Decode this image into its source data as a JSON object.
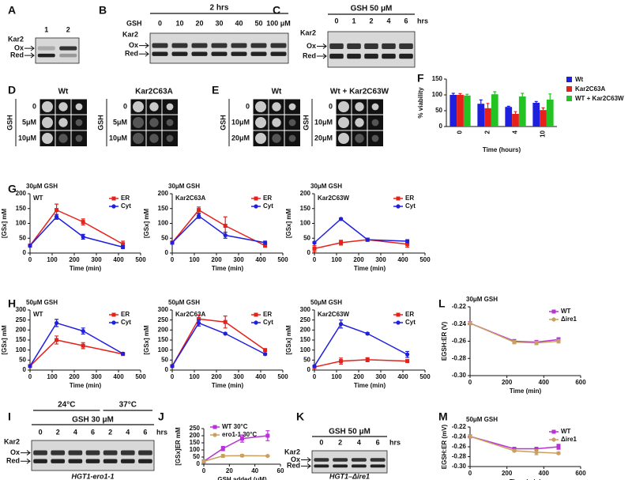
{
  "panels": {
    "blots": [
      {
        "letter": "A",
        "lanes": [
          "1",
          "2"
        ],
        "markers": [
          "Kar2",
          "Ox",
          "Red"
        ]
      },
      {
        "letter": "B",
        "header": "2 hrs",
        "lead": "GSH",
        "lanes": [
          "0",
          "10",
          "20",
          "30",
          "40",
          "50",
          "100 μM"
        ],
        "markers": [
          "Kar2",
          "Ox",
          "Red"
        ]
      },
      {
        "letter": "C",
        "header": "GSH 50 μM",
        "lanes": [
          "0",
          "1",
          "2",
          "4",
          "6"
        ],
        "unit": "hrs",
        "markers": [
          "Kar2",
          "Ox",
          "Red"
        ]
      },
      {
        "letter": "I",
        "temps": [
          "24°C",
          "37°C"
        ],
        "header": "GSH 30 μM",
        "lanes": [
          "0",
          "2",
          "4",
          "6",
          "2",
          "4",
          "6"
        ],
        "unit": "hrs",
        "markers": [
          "Kar2",
          "Ox",
          "Red"
        ],
        "caption": "HGT1-ero1-1"
      },
      {
        "letter": "K",
        "header": "GSH 50 μM",
        "lanes": [
          "0",
          "2",
          "4",
          "6"
        ],
        "unit": "hrs",
        "markers": [
          "Kar2",
          "Ox",
          "Red"
        ],
        "caption": "HGT1–Δire1"
      }
    ],
    "spots": [
      {
        "letter": "D",
        "side": "GSH",
        "groups": [
          {
            "title": "Wt",
            "rows": [
              "0",
              "5μM",
              "10μM"
            ]
          },
          {
            "title": "Kar2C63A",
            "rows": [
              "0",
              "5μM",
              "10μM"
            ]
          }
        ]
      },
      {
        "letter": "E",
        "side": "GSH",
        "groups": [
          {
            "title": "Wt",
            "rows": [
              "0",
              "10μM",
              "20μM"
            ]
          },
          {
            "title": "Wt + Kar2C63W",
            "rows": [
              "0",
              "10μM",
              "20μM"
            ]
          }
        ]
      }
    ]
  },
  "chart_data": [
    {
      "type": "bar",
      "panel": "F",
      "ylabel": "% viability",
      "xlabel": "Time (hours)",
      "categories": [
        "0",
        "2",
        "4",
        "10"
      ],
      "ylim": [
        0,
        150
      ],
      "yticks": [
        0,
        50,
        100,
        150
      ],
      "series": [
        {
          "name": "Wt",
          "color": "#1f1fe0",
          "values": [
            100,
            72,
            62,
            75
          ],
          "errors": [
            5,
            12,
            2,
            4
          ]
        },
        {
          "name": "Kar2C63A",
          "color": "#e8201a",
          "values": [
            100,
            58,
            40,
            52
          ],
          "errors": [
            4,
            15,
            7,
            7
          ]
        },
        {
          "name": "WT + Kar2C63W",
          "color": "#22c322",
          "values": [
            98,
            102,
            95,
            85
          ],
          "errors": [
            4,
            8,
            10,
            18
          ]
        }
      ]
    },
    {
      "type": "line",
      "panel": "G",
      "title": "30μM GSH",
      "label": "WT",
      "xlabel": "Time (min)",
      "ylabel": "[GSx] mM",
      "x": [
        0,
        120,
        240,
        420
      ],
      "xlim": [
        0,
        500
      ],
      "xticks": [
        0,
        100,
        200,
        300,
        400,
        500
      ],
      "ylim": [
        0,
        200
      ],
      "yticks": [
        0,
        50,
        100,
        150,
        200
      ],
      "series": [
        {
          "name": "ER",
          "color": "#e8201a",
          "values": [
            25,
            145,
            105,
            30
          ],
          "errors": [
            5,
            20,
            10,
            10
          ]
        },
        {
          "name": "Cyt",
          "color": "#1f1fe0",
          "values": [
            25,
            122,
            55,
            20
          ],
          "errors": [
            3,
            8,
            8,
            5
          ]
        }
      ]
    },
    {
      "type": "line",
      "title": "30μM GSH",
      "label": "Kar2C63A",
      "xlabel": "Time (min)",
      "ylabel": "[GSx] mM",
      "x": [
        0,
        120,
        240,
        420
      ],
      "xlim": [
        0,
        500
      ],
      "xticks": [
        0,
        100,
        200,
        300,
        400,
        500
      ],
      "ylim": [
        0,
        200
      ],
      "yticks": [
        0,
        50,
        100,
        150,
        200
      ],
      "series": [
        {
          "name": "ER",
          "color": "#e8201a",
          "values": [
            35,
            145,
            92,
            25
          ],
          "errors": [
            5,
            10,
            30,
            5
          ]
        },
        {
          "name": "Cyt",
          "color": "#1f1fe0",
          "values": [
            35,
            125,
            60,
            35
          ],
          "errors": [
            3,
            8,
            10,
            5
          ]
        }
      ]
    },
    {
      "type": "line",
      "title": "30μM GSH",
      "label": "Kar2C63W",
      "xlabel": "Time (min)",
      "ylabel": "[GSx] mM",
      "x": [
        0,
        120,
        240,
        420
      ],
      "xlim": [
        0,
        500
      ],
      "xticks": [
        0,
        100,
        200,
        300,
        400,
        500
      ],
      "ylim": [
        0,
        200
      ],
      "yticks": [
        0,
        50,
        100,
        150,
        200
      ],
      "series": [
        {
          "name": "ER",
          "color": "#e8201a",
          "values": [
            15,
            35,
            45,
            30
          ],
          "errors": [
            10,
            8,
            5,
            10
          ]
        },
        {
          "name": "Cyt",
          "color": "#1f1fe0",
          "values": [
            35,
            115,
            45,
            40
          ],
          "errors": [
            3,
            3,
            5,
            5
          ]
        }
      ]
    },
    {
      "type": "line",
      "panel": "H",
      "title": "50μM GSH",
      "label": "WT",
      "xlabel": "Time (min)",
      "ylabel": "[GSx] mM",
      "x": [
        0,
        120,
        240,
        420
      ],
      "xlim": [
        0,
        500
      ],
      "xticks": [
        0,
        100,
        200,
        300,
        400,
        500
      ],
      "ylim": [
        0,
        300
      ],
      "yticks": [
        0,
        50,
        100,
        150,
        200,
        250,
        300
      ],
      "series": [
        {
          "name": "ER",
          "color": "#e8201a",
          "values": [
            20,
            150,
            122,
            80
          ],
          "errors": [
            3,
            20,
            15,
            5
          ]
        },
        {
          "name": "Cyt",
          "color": "#1f1fe0",
          "values": [
            20,
            235,
            195,
            82
          ],
          "errors": [
            3,
            18,
            15,
            5
          ]
        }
      ]
    },
    {
      "type": "line",
      "title": "50μM GSH",
      "label": "Kar2C63A",
      "xlabel": "Time (min)",
      "ylabel": "[GSx] mM",
      "x": [
        0,
        120,
        240,
        420
      ],
      "xlim": [
        0,
        500
      ],
      "xticks": [
        0,
        100,
        200,
        300,
        400,
        500
      ],
      "ylim": [
        0,
        300
      ],
      "yticks": [
        0,
        50,
        100,
        150,
        200,
        250,
        300
      ],
      "series": [
        {
          "name": "ER",
          "color": "#e8201a",
          "values": [
            20,
            255,
            240,
            100
          ],
          "errors": [
            3,
            20,
            30,
            5
          ]
        },
        {
          "name": "Cyt",
          "color": "#1f1fe0",
          "values": [
            20,
            235,
            182,
            80
          ],
          "errors": [
            3,
            15,
            3,
            5
          ]
        }
      ]
    },
    {
      "type": "line",
      "title": "50μM GSH",
      "label": "Kar2C63W",
      "xlabel": "Time (min)",
      "ylabel": "[GSx] mM",
      "x": [
        0,
        120,
        240,
        420
      ],
      "xlim": [
        0,
        500
      ],
      "xticks": [
        0,
        100,
        200,
        300,
        400,
        500
      ],
      "ylim": [
        0,
        300
      ],
      "yticks": [
        0,
        50,
        100,
        150,
        200,
        250,
        300
      ],
      "series": [
        {
          "name": "ER",
          "color": "#e8201a",
          "values": [
            15,
            45,
            52,
            45
          ],
          "errors": [
            3,
            15,
            10,
            3
          ]
        },
        {
          "name": "Cyt",
          "color": "#1f1fe0",
          "values": [
            20,
            230,
            182,
            78
          ],
          "errors": [
            3,
            20,
            5,
            15
          ]
        }
      ]
    },
    {
      "type": "line",
      "panel": "J",
      "xlabel": "GSH added (μM)",
      "ylabel": "[GSx]ER mM",
      "x": [
        0,
        15,
        30,
        50
      ],
      "xlim": [
        0,
        60
      ],
      "xticks": [
        0,
        20,
        40,
        60
      ],
      "ylim": [
        0,
        250
      ],
      "yticks": [
        0,
        50,
        100,
        150,
        200,
        250
      ],
      "series": [
        {
          "name": "WT 30°C",
          "color": "#b833d6",
          "values": [
            20,
            110,
            180,
            200
          ],
          "errors": [
            5,
            15,
            25,
            35
          ]
        },
        {
          "name": "ero1-1 30°C",
          "color": "#c8a060",
          "values": [
            20,
            58,
            60,
            58
          ],
          "errors": [
            3,
            10,
            8,
            5
          ]
        }
      ]
    },
    {
      "type": "line",
      "panel": "L",
      "title": "30μM GSH",
      "xlabel": "Time (min)",
      "ylabel": "EGSH:ER (V)",
      "x": [
        0,
        240,
        360,
        480
      ],
      "xlim": [
        0,
        600
      ],
      "xticks": [
        0,
        200,
        400,
        600
      ],
      "ylim": [
        -0.3,
        -0.22
      ],
      "yticks": [
        -0.22,
        -0.24,
        -0.26,
        -0.28,
        {
          "value": -0.3,
          "label": "-0.30"
        }
      ],
      "series": [
        {
          "name": "WT",
          "color": "#b833d6",
          "values": [
            -0.239,
            -0.26,
            -0.261,
            -0.258
          ],
          "errors": [
            0.001,
            0.002,
            0.002,
            0.002
          ]
        },
        {
          "name": "Δire1",
          "color": "#c8a060",
          "values": [
            -0.239,
            -0.261,
            -0.262,
            -0.26
          ],
          "errors": [
            0.001,
            0.002,
            0.002,
            0.002
          ]
        }
      ]
    },
    {
      "type": "line",
      "panel": "M",
      "title": "50μM GSH",
      "xlabel": "Time (min)",
      "ylabel": "EGSH:ER (mV)",
      "x": [
        0,
        240,
        360,
        480
      ],
      "xlim": [
        0,
        600
      ],
      "xticks": [
        0,
        200,
        400,
        600
      ],
      "ylim": [
        -0.3,
        -0.22
      ],
      "yticks": [
        -0.22,
        -0.24,
        -0.26,
        -0.28,
        {
          "value": -0.3,
          "label": "-0.30"
        }
      ],
      "series": [
        {
          "name": "WT",
          "color": "#b833d6",
          "values": [
            -0.239,
            -0.264,
            -0.264,
            -0.26
          ],
          "errors": [
            0.001,
            0.001,
            0.002,
            0.005
          ]
        },
        {
          "name": "Δire1",
          "color": "#c8a060",
          "values": [
            -0.239,
            -0.268,
            -0.271,
            -0.273
          ],
          "errors": [
            0.001,
            0.002,
            0.005,
            0.002
          ]
        }
      ]
    }
  ]
}
